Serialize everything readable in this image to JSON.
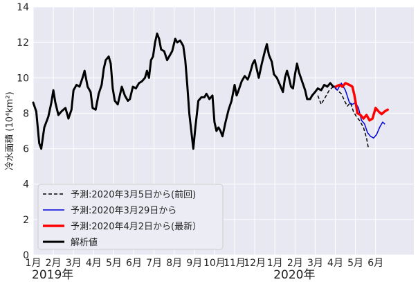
{
  "chart_data": {
    "type": "line",
    "ylabel": "冷水面積 (10⁴km²)",
    "ylim": [
      0,
      14
    ],
    "yticks": [
      0,
      2,
      4,
      6,
      8,
      10,
      12,
      14
    ],
    "xlim": [
      0,
      18.9
    ],
    "xtick_labels": [
      "1月",
      "2月",
      "3月",
      "4月",
      "5月",
      "6月",
      "7月",
      "8月",
      "9月",
      "10月",
      "11月",
      "12月",
      "1月",
      "2月",
      "3月",
      "4月",
      "5月",
      "6月"
    ],
    "year_labels": [
      {
        "x": 0,
        "label": "2019年"
      },
      {
        "x": 12,
        "label": "2020年"
      }
    ],
    "grid": true,
    "legend_position": "lower-left",
    "series": [
      {
        "name": "予測:2020年3月5日から(前回)",
        "color": "#000000",
        "style": "dashed",
        "width": 1.5,
        "points": [
          [
            14.13,
            9.0
          ],
          [
            14.3,
            8.5
          ],
          [
            14.5,
            8.9
          ],
          [
            14.7,
            9.3
          ],
          [
            14.9,
            9.5
          ],
          [
            15.1,
            9.3
          ],
          [
            15.3,
            9.1
          ],
          [
            15.5,
            8.6
          ],
          [
            15.6,
            8.4
          ],
          [
            15.75,
            8.6
          ],
          [
            15.9,
            8.1
          ],
          [
            16.05,
            7.8
          ],
          [
            16.2,
            7.6
          ],
          [
            16.4,
            7.2
          ],
          [
            16.55,
            6.6
          ],
          [
            16.65,
            6.0
          ]
        ]
      },
      {
        "name": "予測:2020年3月29日から",
        "color": "#0000dd",
        "style": "solid",
        "width": 1.5,
        "points": [
          [
            14.97,
            9.5
          ],
          [
            15.1,
            9.3
          ],
          [
            15.3,
            9.7
          ],
          [
            15.5,
            9.3
          ],
          [
            15.7,
            8.6
          ],
          [
            15.85,
            8.5
          ],
          [
            16.0,
            8.6
          ],
          [
            16.15,
            8.3
          ],
          [
            16.3,
            7.6
          ],
          [
            16.45,
            7.4
          ],
          [
            16.6,
            6.9
          ],
          [
            16.75,
            6.7
          ],
          [
            16.9,
            6.6
          ],
          [
            17.05,
            6.8
          ],
          [
            17.2,
            7.2
          ],
          [
            17.35,
            7.5
          ],
          [
            17.45,
            7.4
          ]
        ]
      },
      {
        "name": "予測:2020年4月2日から(最新）",
        "color": "#ff0000",
        "style": "solid",
        "width": 3.5,
        "points": [
          [
            15.03,
            9.5
          ],
          [
            15.2,
            9.6
          ],
          [
            15.35,
            9.5
          ],
          [
            15.5,
            9.7
          ],
          [
            15.7,
            9.6
          ],
          [
            15.85,
            9.5
          ],
          [
            15.95,
            9.0
          ],
          [
            16.1,
            8.0
          ],
          [
            16.25,
            7.9
          ],
          [
            16.4,
            7.7
          ],
          [
            16.55,
            7.9
          ],
          [
            16.7,
            7.6
          ],
          [
            16.85,
            7.7
          ],
          [
            17.0,
            8.3
          ],
          [
            17.15,
            8.1
          ],
          [
            17.3,
            7.95
          ],
          [
            17.45,
            8.1
          ],
          [
            17.6,
            8.2
          ]
        ]
      },
      {
        "name": "解析値",
        "color": "#000000",
        "style": "solid",
        "width": 3,
        "points": [
          [
            0.0,
            8.6
          ],
          [
            0.15,
            8.1
          ],
          [
            0.3,
            6.3
          ],
          [
            0.4,
            6.0
          ],
          [
            0.55,
            7.2
          ],
          [
            0.75,
            7.8
          ],
          [
            0.9,
            8.6
          ],
          [
            1.0,
            9.3
          ],
          [
            1.1,
            8.6
          ],
          [
            1.25,
            7.9
          ],
          [
            1.4,
            8.1
          ],
          [
            1.6,
            8.3
          ],
          [
            1.75,
            7.7
          ],
          [
            1.9,
            8.2
          ],
          [
            2.0,
            9.3
          ],
          [
            2.15,
            9.6
          ],
          [
            2.3,
            9.5
          ],
          [
            2.45,
            10.0
          ],
          [
            2.55,
            10.4
          ],
          [
            2.7,
            9.5
          ],
          [
            2.85,
            9.2
          ],
          [
            2.95,
            8.3
          ],
          [
            3.1,
            8.2
          ],
          [
            3.25,
            9.1
          ],
          [
            3.4,
            9.6
          ],
          [
            3.5,
            10.5
          ],
          [
            3.6,
            11.0
          ],
          [
            3.75,
            11.2
          ],
          [
            3.85,
            10.8
          ],
          [
            3.95,
            9.4
          ],
          [
            4.05,
            8.7
          ],
          [
            4.2,
            8.5
          ],
          [
            4.3,
            9.0
          ],
          [
            4.4,
            9.5
          ],
          [
            4.55,
            9.0
          ],
          [
            4.7,
            8.7
          ],
          [
            4.8,
            8.8
          ],
          [
            4.95,
            9.5
          ],
          [
            5.1,
            9.4
          ],
          [
            5.25,
            9.7
          ],
          [
            5.4,
            9.8
          ],
          [
            5.55,
            10.0
          ],
          [
            5.65,
            10.4
          ],
          [
            5.75,
            10.0
          ],
          [
            5.85,
            11.0
          ],
          [
            5.95,
            11.2
          ],
          [
            6.05,
            12.0
          ],
          [
            6.15,
            12.5
          ],
          [
            6.25,
            12.2
          ],
          [
            6.35,
            11.6
          ],
          [
            6.5,
            11.5
          ],
          [
            6.65,
            11.0
          ],
          [
            6.75,
            11.2
          ],
          [
            6.9,
            11.5
          ],
          [
            7.05,
            12.2
          ],
          [
            7.15,
            12.0
          ],
          [
            7.3,
            12.1
          ],
          [
            7.45,
            11.8
          ],
          [
            7.55,
            11.0
          ],
          [
            7.65,
            9.6
          ],
          [
            7.75,
            8.0
          ],
          [
            7.85,
            7.0
          ],
          [
            7.95,
            6.0
          ],
          [
            8.05,
            7.2
          ],
          [
            8.2,
            8.7
          ],
          [
            8.35,
            8.9
          ],
          [
            8.5,
            8.9
          ],
          [
            8.6,
            9.1
          ],
          [
            8.75,
            8.8
          ],
          [
            8.9,
            9.0
          ],
          [
            9.0,
            7.5
          ],
          [
            9.1,
            7.0
          ],
          [
            9.2,
            7.2
          ],
          [
            9.3,
            7.0
          ],
          [
            9.4,
            6.7
          ],
          [
            9.55,
            7.5
          ],
          [
            9.7,
            8.2
          ],
          [
            9.85,
            8.7
          ],
          [
            10.0,
            9.6
          ],
          [
            10.1,
            9.0
          ],
          [
            10.2,
            9.3
          ],
          [
            10.35,
            9.8
          ],
          [
            10.5,
            10.1
          ],
          [
            10.65,
            9.9
          ],
          [
            10.75,
            10.2
          ],
          [
            10.9,
            10.8
          ],
          [
            11.0,
            11.0
          ],
          [
            11.1,
            10.5
          ],
          [
            11.2,
            10.0
          ],
          [
            11.35,
            10.8
          ],
          [
            11.5,
            11.5
          ],
          [
            11.6,
            11.9
          ],
          [
            11.7,
            11.3
          ],
          [
            11.85,
            10.9
          ],
          [
            11.95,
            10.2
          ],
          [
            12.1,
            10.0
          ],
          [
            12.25,
            9.6
          ],
          [
            12.4,
            9.2
          ],
          [
            12.5,
            10.0
          ],
          [
            12.6,
            10.4
          ],
          [
            12.7,
            10.0
          ],
          [
            12.8,
            9.5
          ],
          [
            12.9,
            9.4
          ],
          [
            13.0,
            10.2
          ],
          [
            13.1,
            10.8
          ],
          [
            13.2,
            10.3
          ],
          [
            13.35,
            9.8
          ],
          [
            13.5,
            9.3
          ],
          [
            13.6,
            8.8
          ],
          [
            13.75,
            8.8
          ],
          [
            13.85,
            9.0
          ],
          [
            14.0,
            9.2
          ],
          [
            14.13,
            9.4
          ],
          [
            14.3,
            9.3
          ],
          [
            14.45,
            9.6
          ],
          [
            14.6,
            9.5
          ],
          [
            14.75,
            9.7
          ],
          [
            14.9,
            9.5
          ],
          [
            15.0,
            9.5
          ]
        ]
      }
    ]
  }
}
